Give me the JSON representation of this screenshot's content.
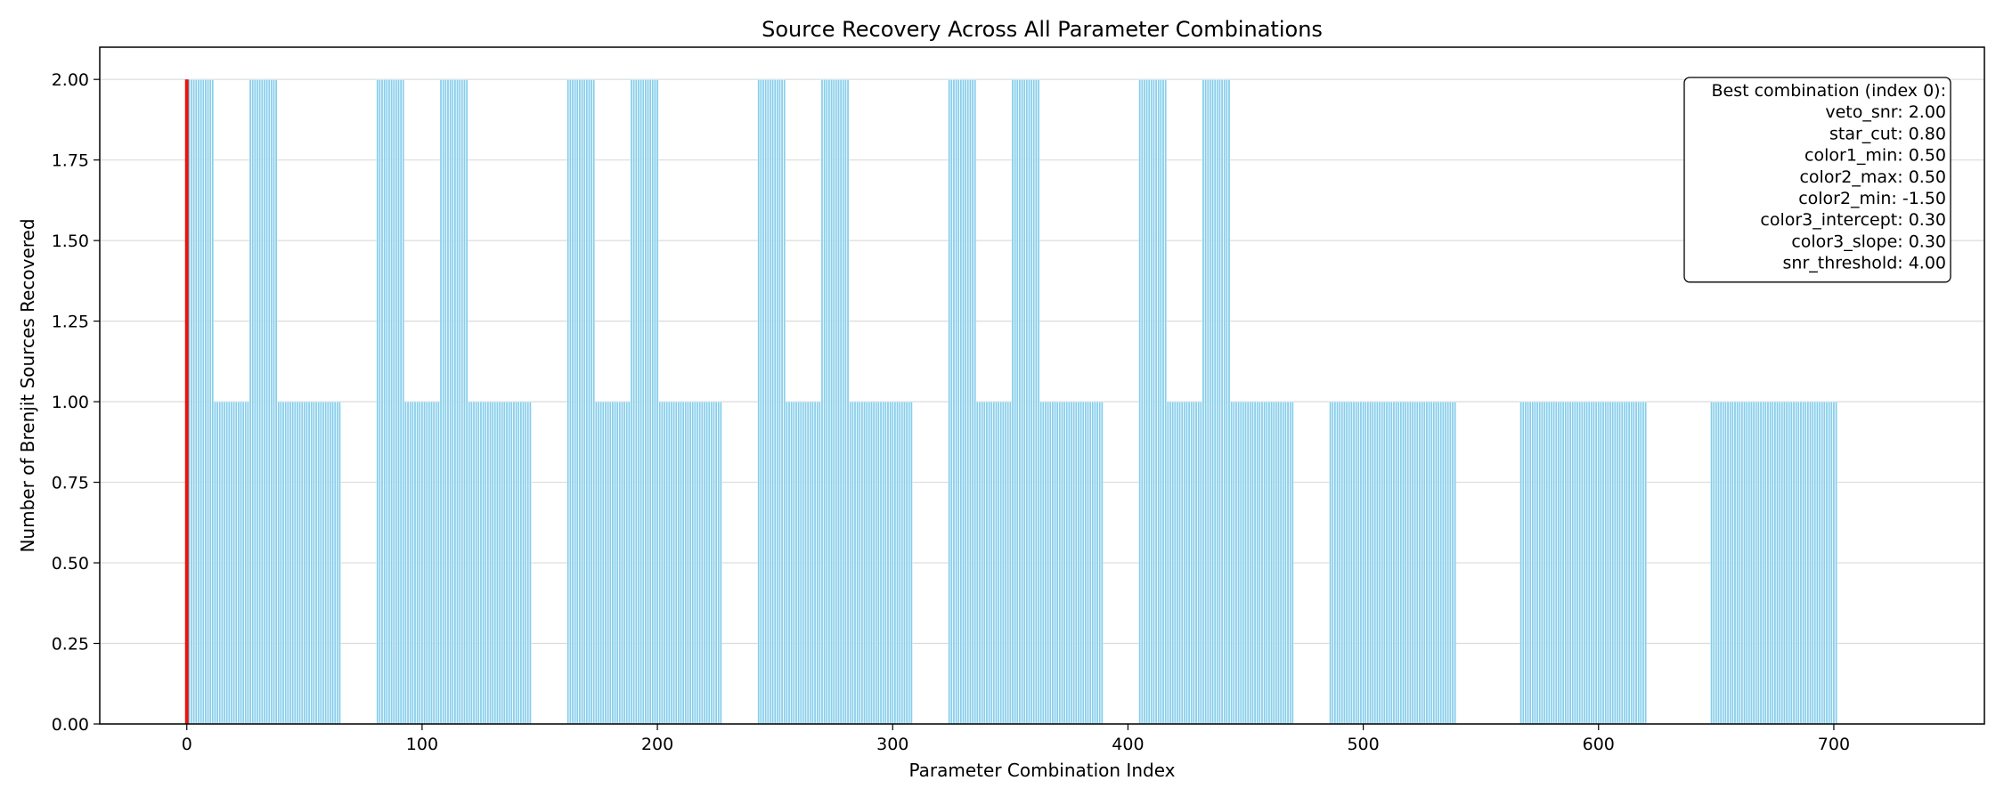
{
  "chart_data": {
    "type": "bar",
    "title": "Source Recovery Across All Parameter Combinations",
    "xlabel": "Parameter Combination Index",
    "ylabel": "Number of Brenjit Sources Recovered",
    "xlim": [
      -37,
      764
    ],
    "ylim": [
      0,
      2.1
    ],
    "xticks": [
      0,
      100,
      200,
      300,
      400,
      500,
      600,
      700
    ],
    "yticks": [
      0.0,
      0.25,
      0.5,
      0.75,
      1.0,
      1.25,
      1.5,
      1.75,
      2.0
    ],
    "ytick_labels": [
      "0.00",
      "0.25",
      "0.50",
      "0.75",
      "1.00",
      "1.25",
      "1.50",
      "1.75",
      "2.00"
    ],
    "grid": "horizontal",
    "bar_color": "#87ceeb",
    "highlight_color": "#e8140a",
    "best_index": 0,
    "runs": [
      {
        "start": 0,
        "end": 11,
        "value": 2
      },
      {
        "start": 12,
        "end": 26,
        "value": 1
      },
      {
        "start": 27,
        "end": 38,
        "value": 2
      },
      {
        "start": 39,
        "end": 65,
        "value": 1
      },
      {
        "start": 81,
        "end": 92,
        "value": 2
      },
      {
        "start": 93,
        "end": 107,
        "value": 1
      },
      {
        "start": 108,
        "end": 119,
        "value": 2
      },
      {
        "start": 120,
        "end": 146,
        "value": 1
      },
      {
        "start": 162,
        "end": 173,
        "value": 2
      },
      {
        "start": 174,
        "end": 188,
        "value": 1
      },
      {
        "start": 189,
        "end": 200,
        "value": 2
      },
      {
        "start": 201,
        "end": 227,
        "value": 1
      },
      {
        "start": 243,
        "end": 254,
        "value": 2
      },
      {
        "start": 255,
        "end": 269,
        "value": 1
      },
      {
        "start": 270,
        "end": 281,
        "value": 2
      },
      {
        "start": 282,
        "end": 308,
        "value": 1
      },
      {
        "start": 324,
        "end": 335,
        "value": 2
      },
      {
        "start": 336,
        "end": 350,
        "value": 1
      },
      {
        "start": 351,
        "end": 362,
        "value": 2
      },
      {
        "start": 363,
        "end": 389,
        "value": 1
      },
      {
        "start": 405,
        "end": 416,
        "value": 2
      },
      {
        "start": 417,
        "end": 431,
        "value": 1
      },
      {
        "start": 432,
        "end": 443,
        "value": 2
      },
      {
        "start": 444,
        "end": 470,
        "value": 1
      },
      {
        "start": 486,
        "end": 539,
        "value": 1
      },
      {
        "start": 567,
        "end": 620,
        "value": 1
      },
      {
        "start": 648,
        "end": 701,
        "value": 1
      }
    ],
    "annotation": {
      "lines": [
        "Best combination (index 0):",
        "veto_snr: 2.00",
        "star_cut: 0.80",
        "color1_min: 0.50",
        "color2_max: 0.50",
        "color2_min: -1.50",
        "color3_intercept: 0.30",
        "color3_slope: 0.30",
        "snr_threshold: 4.00"
      ]
    }
  }
}
